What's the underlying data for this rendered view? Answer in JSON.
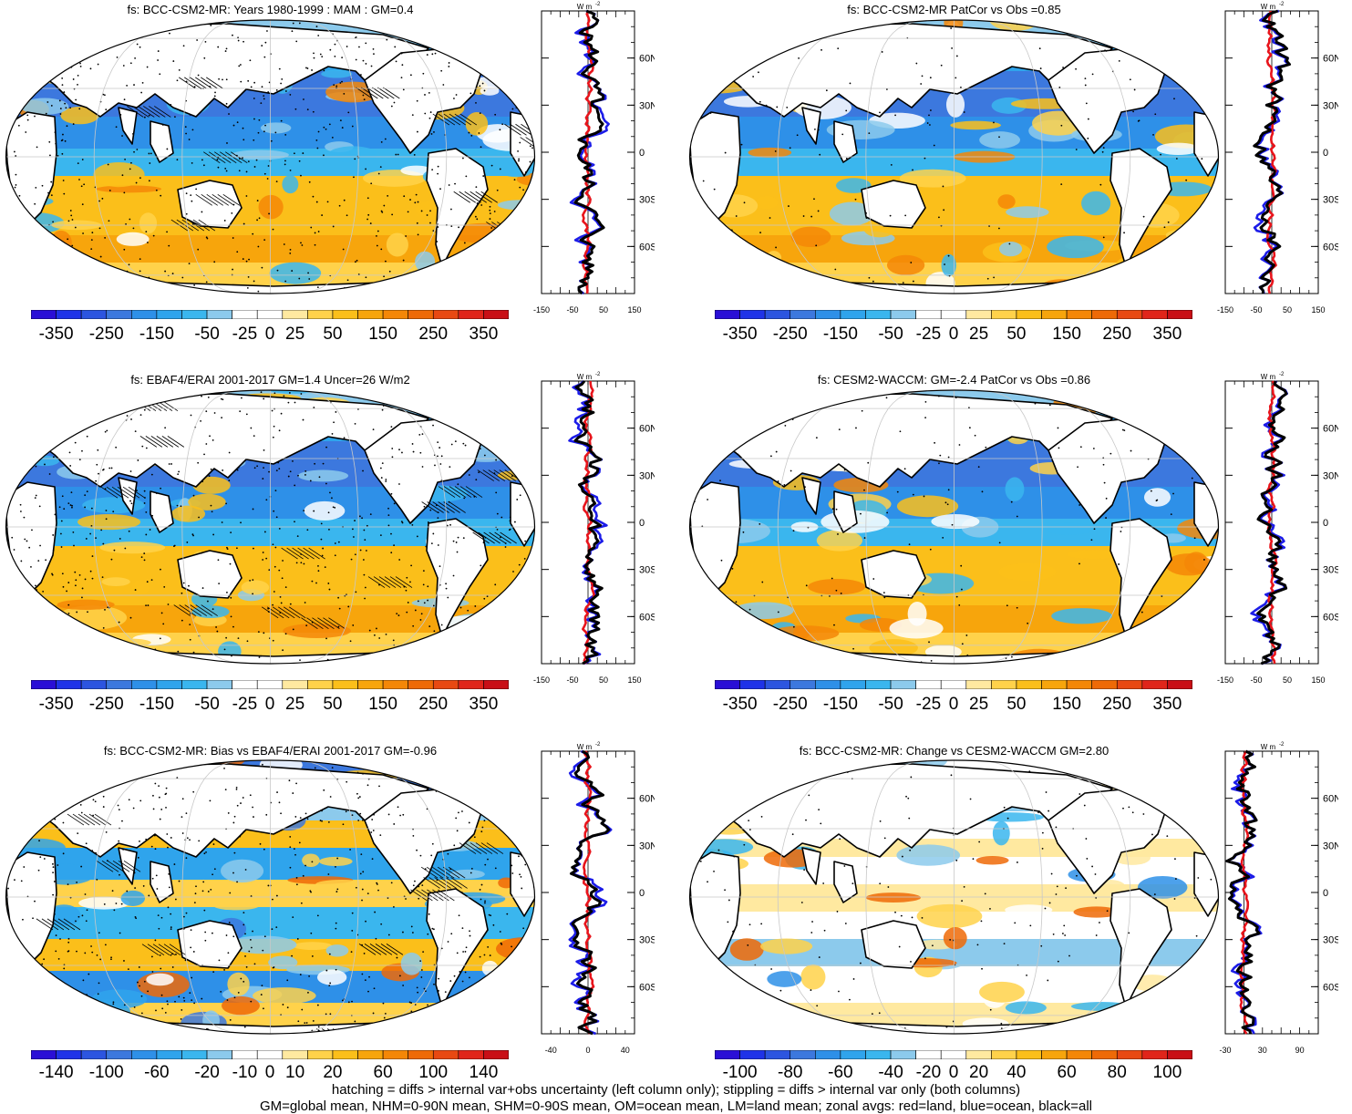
{
  "panels": [
    {
      "id": "p1",
      "title": "fs: BCC-CSM2-MR: Years 1980-1999 : MAM : GM=0.4",
      "palette": "mean",
      "colorbar": [
        "-350",
        "-250",
        "-150",
        "-50",
        "-25",
        "0",
        "25",
        "50",
        "150",
        "250",
        "350"
      ],
      "zonal_ticks": [
        "-150",
        "-50",
        "50",
        "150"
      ],
      "zonal_range": [
        -150,
        150
      ],
      "lat_labels": [
        "60N",
        "30N",
        "0",
        "30S",
        "60S"
      ],
      "hatching": true
    },
    {
      "id": "p2",
      "title": "fs: BCC-CSM2-MR PatCor vs Obs =0.85",
      "palette": "mean",
      "colorbar": [
        "-350",
        "-250",
        "-150",
        "-50",
        "-25",
        "0",
        "25",
        "50",
        "150",
        "250",
        "350"
      ],
      "zonal_ticks": [
        "-150",
        "-50",
        "50",
        "150"
      ],
      "zonal_range": [
        -150,
        150
      ],
      "lat_labels": [
        "60N",
        "30N",
        "0",
        "30S",
        "60S"
      ],
      "hatching": false
    },
    {
      "id": "p3",
      "title": "fs: EBAF4/ERAI 2001-2017 GM=1.4 Uncer=26 W/m2",
      "palette": "mean",
      "colorbar": [
        "-350",
        "-250",
        "-150",
        "-50",
        "-25",
        "0",
        "25",
        "50",
        "150",
        "250",
        "350"
      ],
      "zonal_ticks": [
        "-150",
        "-50",
        "50",
        "150"
      ],
      "zonal_range": [
        -150,
        150
      ],
      "lat_labels": [
        "60N",
        "30N",
        "0",
        "30S",
        "60S"
      ],
      "hatching": true
    },
    {
      "id": "p4",
      "title": "fs: CESM2-WACCM: GM=-2.4 PatCor vs Obs =0.86",
      "palette": "mean",
      "colorbar": [
        "-350",
        "-250",
        "-150",
        "-50",
        "-25",
        "0",
        "25",
        "50",
        "150",
        "250",
        "350"
      ],
      "zonal_ticks": [
        "-150",
        "-50",
        "50",
        "150"
      ],
      "zonal_range": [
        -150,
        150
      ],
      "lat_labels": [
        "60N",
        "30N",
        "0",
        "30S",
        "60S"
      ],
      "hatching": false
    },
    {
      "id": "p5",
      "title": "fs: BCC-CSM2-MR: Bias vs EBAF4/ERAI 2001-2017 GM=-0.96",
      "palette": "bias",
      "colorbar": [
        "-140",
        "-100",
        "-60",
        "-20",
        "-10",
        "0",
        "10",
        "20",
        "60",
        "100",
        "140"
      ],
      "zonal_ticks": [
        "-40",
        "0",
        "40"
      ],
      "zonal_range": [
        -50,
        50
      ],
      "lat_labels": [
        "60N",
        "30N",
        "0",
        "30S",
        "60S"
      ],
      "hatching": true
    },
    {
      "id": "p6",
      "title": "fs: BCC-CSM2-MR: Change vs CESM2-WACCM GM=2.80",
      "palette": "change",
      "colorbar": [
        "-100",
        "-80",
        "-60",
        "-40",
        "-20",
        "0",
        "20",
        "40",
        "60",
        "80",
        "100"
      ],
      "zonal_ticks": [
        "-30",
        "30",
        "90"
      ],
      "zonal_range": [
        -30,
        120
      ],
      "lat_labels": [
        "60N",
        "30N",
        "0",
        "30S",
        "60S"
      ],
      "hatching": false
    }
  ],
  "zonal_unit": "W m",
  "zonal_unit_exp": "-2",
  "footer": [
    "hatching = diffs > internal var+obs uncertainty (left column only); stippling = diffs > internal var only (both columns)",
    "GM=global mean, NHM=0-90N mean, SHM=0-90S mean, OM=ocean mean, LM=land mean; zonal avgs: red=land, blue=ocean, black=all"
  ],
  "colors": {
    "scale": [
      "#2a0fd6",
      "#1f33e8",
      "#2c55e0",
      "#3c78de",
      "#2e90e8",
      "#2fa4ec",
      "#3ab6ee",
      "#8ccaec",
      "#ffffff",
      "#ffffff",
      "#ffe9a0",
      "#ffd24a",
      "#fbbf1a",
      "#f7a50c",
      "#f48707",
      "#ee6a07",
      "#e84912",
      "#e0251a",
      "#c90f16"
    ],
    "land": "#ffffff",
    "zonal_land": "#e8141b",
    "zonal_ocean": "#1c1ce8",
    "zonal_all": "#000000"
  }
}
